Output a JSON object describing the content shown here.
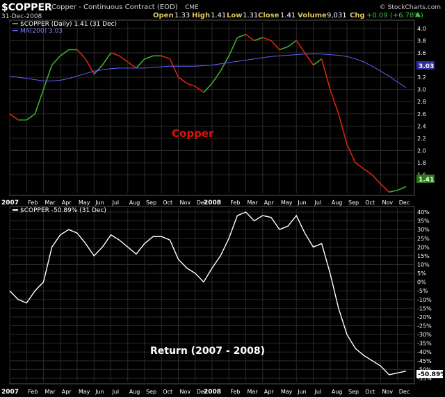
{
  "header": {
    "symbol": "$COPPER",
    "name": "Copper - Continuous Contract (EOD)",
    "exchange": "CME",
    "date": "31-Dec-2008",
    "source": "© StockCharts.com",
    "quote": {
      "open_label": "Open",
      "open": "1.33",
      "high_label": "High",
      "high": "1.41",
      "low_label": "Low",
      "low": "1.31",
      "close_label": "Close",
      "close": "1.41",
      "volume_label": "Volume",
      "volume": "9,031",
      "chg_label": "Chg",
      "chg": "+0.09 (+6.78%)"
    }
  },
  "colors": {
    "up": "#3fae2a",
    "down": "#e02010",
    "ma": "#6060ff",
    "return_line": "#ffffff",
    "annotation": "#e01010",
    "axis_text": "#ffffff",
    "grid": "#2a2a2a"
  },
  "chart_data": [
    {
      "type": "line",
      "legend": [
        "$COPPER (Daily) 1.41 (31 Dec)",
        "MA(200) 3.03"
      ],
      "annotation": "Copper",
      "last_value_label": "1.41",
      "ma_value_label": "3.03",
      "ylim": [
        1.3,
        4.1
      ],
      "y_ticks": [
        "1.6",
        "1.8",
        "2.0",
        "2.2",
        "2.4",
        "2.6",
        "2.8",
        "3.0",
        "3.2",
        "3.4",
        "3.6",
        "3.8",
        "4.0"
      ],
      "x_labels": [
        "2007",
        "Feb",
        "Mar",
        "Apr",
        "May",
        "Jun",
        "Jul",
        "Aug",
        "Sep",
        "Oct",
        "Nov",
        "Dec",
        "2008",
        "Feb",
        "Mar",
        "Apr",
        "May",
        "Jun",
        "Jul",
        "Aug",
        "Sep",
        "Oct",
        "Nov",
        "Dec"
      ],
      "x": [
        0.0,
        0.5,
        1.0,
        1.5,
        2.0,
        2.5,
        3.0,
        3.5,
        4.0,
        4.5,
        5.0,
        5.5,
        6.0,
        6.5,
        7.0,
        7.5,
        8.0,
        8.5,
        9.0,
        9.5,
        10.0,
        10.5,
        11.0,
        11.5,
        12.0,
        12.5,
        13.0,
        13.5,
        14.0,
        14.5,
        15.0,
        15.5,
        16.0,
        16.5,
        17.0,
        17.5,
        18.0,
        18.5,
        19.0,
        19.5,
        20.0,
        20.5,
        21.0,
        21.5,
        22.0,
        22.5,
        23.0,
        23.5
      ],
      "series": [
        {
          "name": "$COPPER",
          "values": [
            2.6,
            2.5,
            2.5,
            2.6,
            3.0,
            3.4,
            3.55,
            3.65,
            3.65,
            3.5,
            3.25,
            3.4,
            3.6,
            3.55,
            3.45,
            3.35,
            3.5,
            3.55,
            3.55,
            3.5,
            3.2,
            3.1,
            3.05,
            2.95,
            3.1,
            3.3,
            3.55,
            3.85,
            3.9,
            3.8,
            3.85,
            3.8,
            3.65,
            3.7,
            3.8,
            3.6,
            3.4,
            3.5,
            3.0,
            2.6,
            2.1,
            1.8,
            1.7,
            1.6,
            1.45,
            1.32,
            1.35,
            1.41
          ]
        },
        {
          "name": "MA(200)",
          "values": [
            3.22,
            3.2,
            3.18,
            3.16,
            3.14,
            3.14,
            3.15,
            3.18,
            3.22,
            3.26,
            3.3,
            3.32,
            3.34,
            3.35,
            3.35,
            3.35,
            3.35,
            3.36,
            3.37,
            3.38,
            3.38,
            3.38,
            3.38,
            3.39,
            3.4,
            3.42,
            3.44,
            3.46,
            3.48,
            3.5,
            3.52,
            3.54,
            3.55,
            3.56,
            3.57,
            3.58,
            3.58,
            3.58,
            3.57,
            3.56,
            3.54,
            3.5,
            3.45,
            3.38,
            3.3,
            3.22,
            3.12,
            3.03
          ]
        }
      ]
    },
    {
      "type": "line",
      "legend": [
        "$COPPER -50.89% (31 Dec)"
      ],
      "annotation": "Return (2007 - 2008)",
      "last_value_label": "-50.89%",
      "ylim": [
        -57,
        42
      ],
      "y_ticks": [
        "40%",
        "35%",
        "30%",
        "25%",
        "20%",
        "15%",
        "10%",
        "5%",
        "0%",
        "-5%",
        "-10%",
        "-15%",
        "-20%",
        "-25%",
        "-30%",
        "-35%",
        "-40%",
        "-45%",
        "-50%",
        "-55%"
      ],
      "x_labels": [
        "2007",
        "Feb",
        "Mar",
        "Apr",
        "May",
        "Jun",
        "Jul",
        "Aug",
        "Sep",
        "Oct",
        "Nov",
        "Dec",
        "2008",
        "Feb",
        "Mar",
        "Apr",
        "May",
        "Jun",
        "Jul",
        "Aug",
        "Sep",
        "Oct",
        "Nov",
        "Dec"
      ],
      "x": [
        0.0,
        0.5,
        1.0,
        1.5,
        2.0,
        2.5,
        3.0,
        3.5,
        4.0,
        4.5,
        5.0,
        5.5,
        6.0,
        6.5,
        7.0,
        7.5,
        8.0,
        8.5,
        9.0,
        9.5,
        10.0,
        10.5,
        11.0,
        11.5,
        12.0,
        12.5,
        13.0,
        13.5,
        14.0,
        14.5,
        15.0,
        15.5,
        16.0,
        16.5,
        17.0,
        17.5,
        18.0,
        18.5,
        19.0,
        19.5,
        20.0,
        20.5,
        21.0,
        21.5,
        22.0,
        22.5,
        23.0,
        23.5
      ],
      "series": [
        {
          "name": "$COPPER",
          "values": [
            -5,
            -10,
            -12,
            -5,
            0,
            20,
            27,
            30,
            28,
            22,
            15,
            20,
            27,
            24,
            20,
            16,
            22,
            26,
            26,
            24,
            13,
            8,
            5,
            0,
            8,
            15,
            25,
            38,
            40,
            35,
            38,
            37,
            30,
            32,
            38,
            28,
            20,
            22,
            5,
            -15,
            -30,
            -38,
            -42,
            -45,
            -48,
            -53,
            -52,
            -50.89
          ]
        }
      ]
    }
  ]
}
